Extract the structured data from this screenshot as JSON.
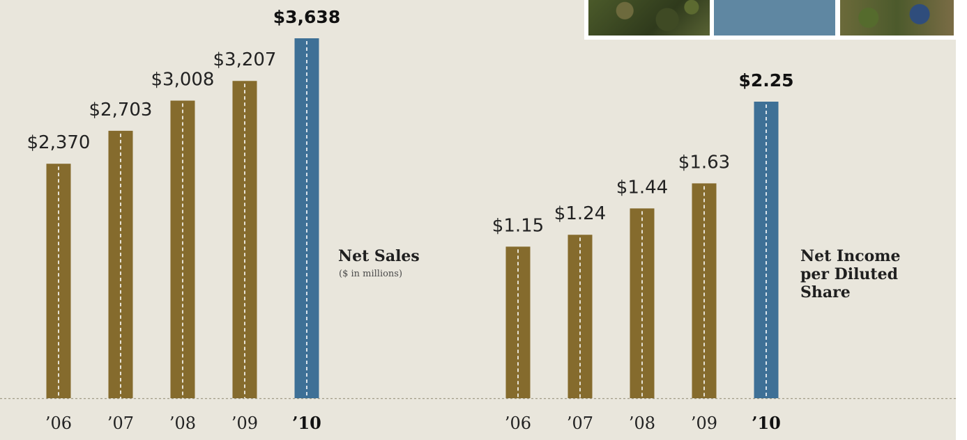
{
  "colors": {
    "background": "#e9e6dc",
    "bar": "#856b2d",
    "bar_highlight": "#3e7096",
    "baseline": "#a19c86"
  },
  "photos": [
    "vegetable-plants-photo",
    "blue-panel",
    "field-worker-photo"
  ],
  "chart_data": [
    {
      "type": "bar",
      "title": "Net Sales",
      "subtitle": "($ in millions)",
      "categories": [
        "’06",
        "’07",
        "’08",
        "’09",
        "’10"
      ],
      "values": [
        2370,
        2703,
        3008,
        3207,
        3638
      ],
      "labels": [
        "$2,370",
        "$2,703",
        "$3,008",
        "$3,207",
        "$3,638"
      ],
      "highlight_index": 4,
      "ylim": [
        0,
        3638
      ]
    },
    {
      "type": "bar",
      "title": "Net Income\nper Diluted\nShare",
      "categories": [
        "’06",
        "’07",
        "’08",
        "’09",
        "’10"
      ],
      "values": [
        1.15,
        1.24,
        1.44,
        1.63,
        2.25
      ],
      "labels": [
        "$1.15",
        "$1.24",
        "$1.44",
        "$1.63",
        "$2.25"
      ],
      "highlight_index": 4,
      "ylim": [
        0,
        2.25
      ]
    }
  ]
}
